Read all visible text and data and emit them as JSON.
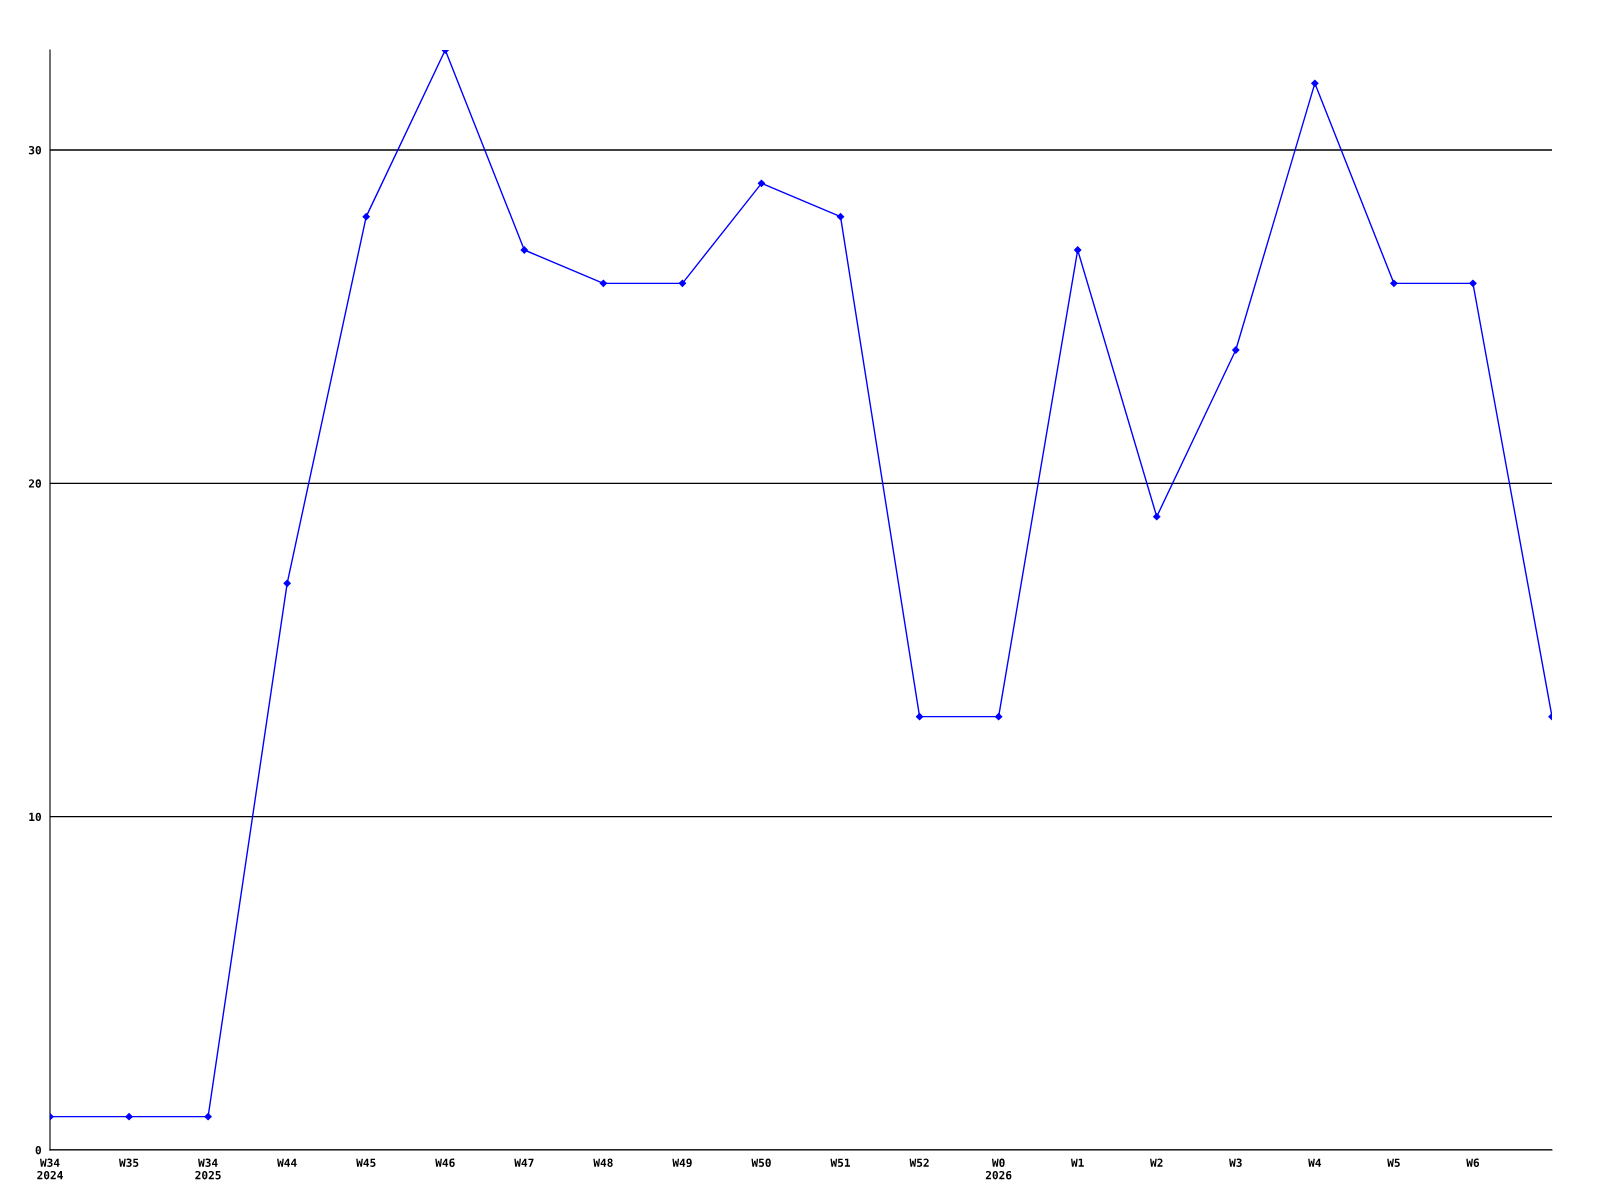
{
  "chart_data": {
    "type": "line",
    "categories": [
      "W34\n2024",
      "W35",
      "W34\n2025",
      "W44",
      "W45",
      "W46",
      "W47",
      "W48",
      "W49",
      "W50",
      "W51",
      "W52",
      "W0\n2026",
      "W1",
      "W2",
      "W3",
      "W4",
      "W5",
      "W6",
      null
    ],
    "series": [
      {
        "color": "#0000ff",
        "values": [
          1,
          1,
          1,
          17,
          28,
          33,
          27,
          26,
          26,
          29,
          28,
          13,
          13,
          27,
          19,
          24,
          32,
          26,
          26,
          13
        ]
      }
    ],
    "ylim": [
      0,
      33
    ],
    "yticks": [
      0,
      10,
      20,
      30
    ],
    "grid": "y",
    "marker": "diamond",
    "line_style": "solid",
    "legend": false
  }
}
